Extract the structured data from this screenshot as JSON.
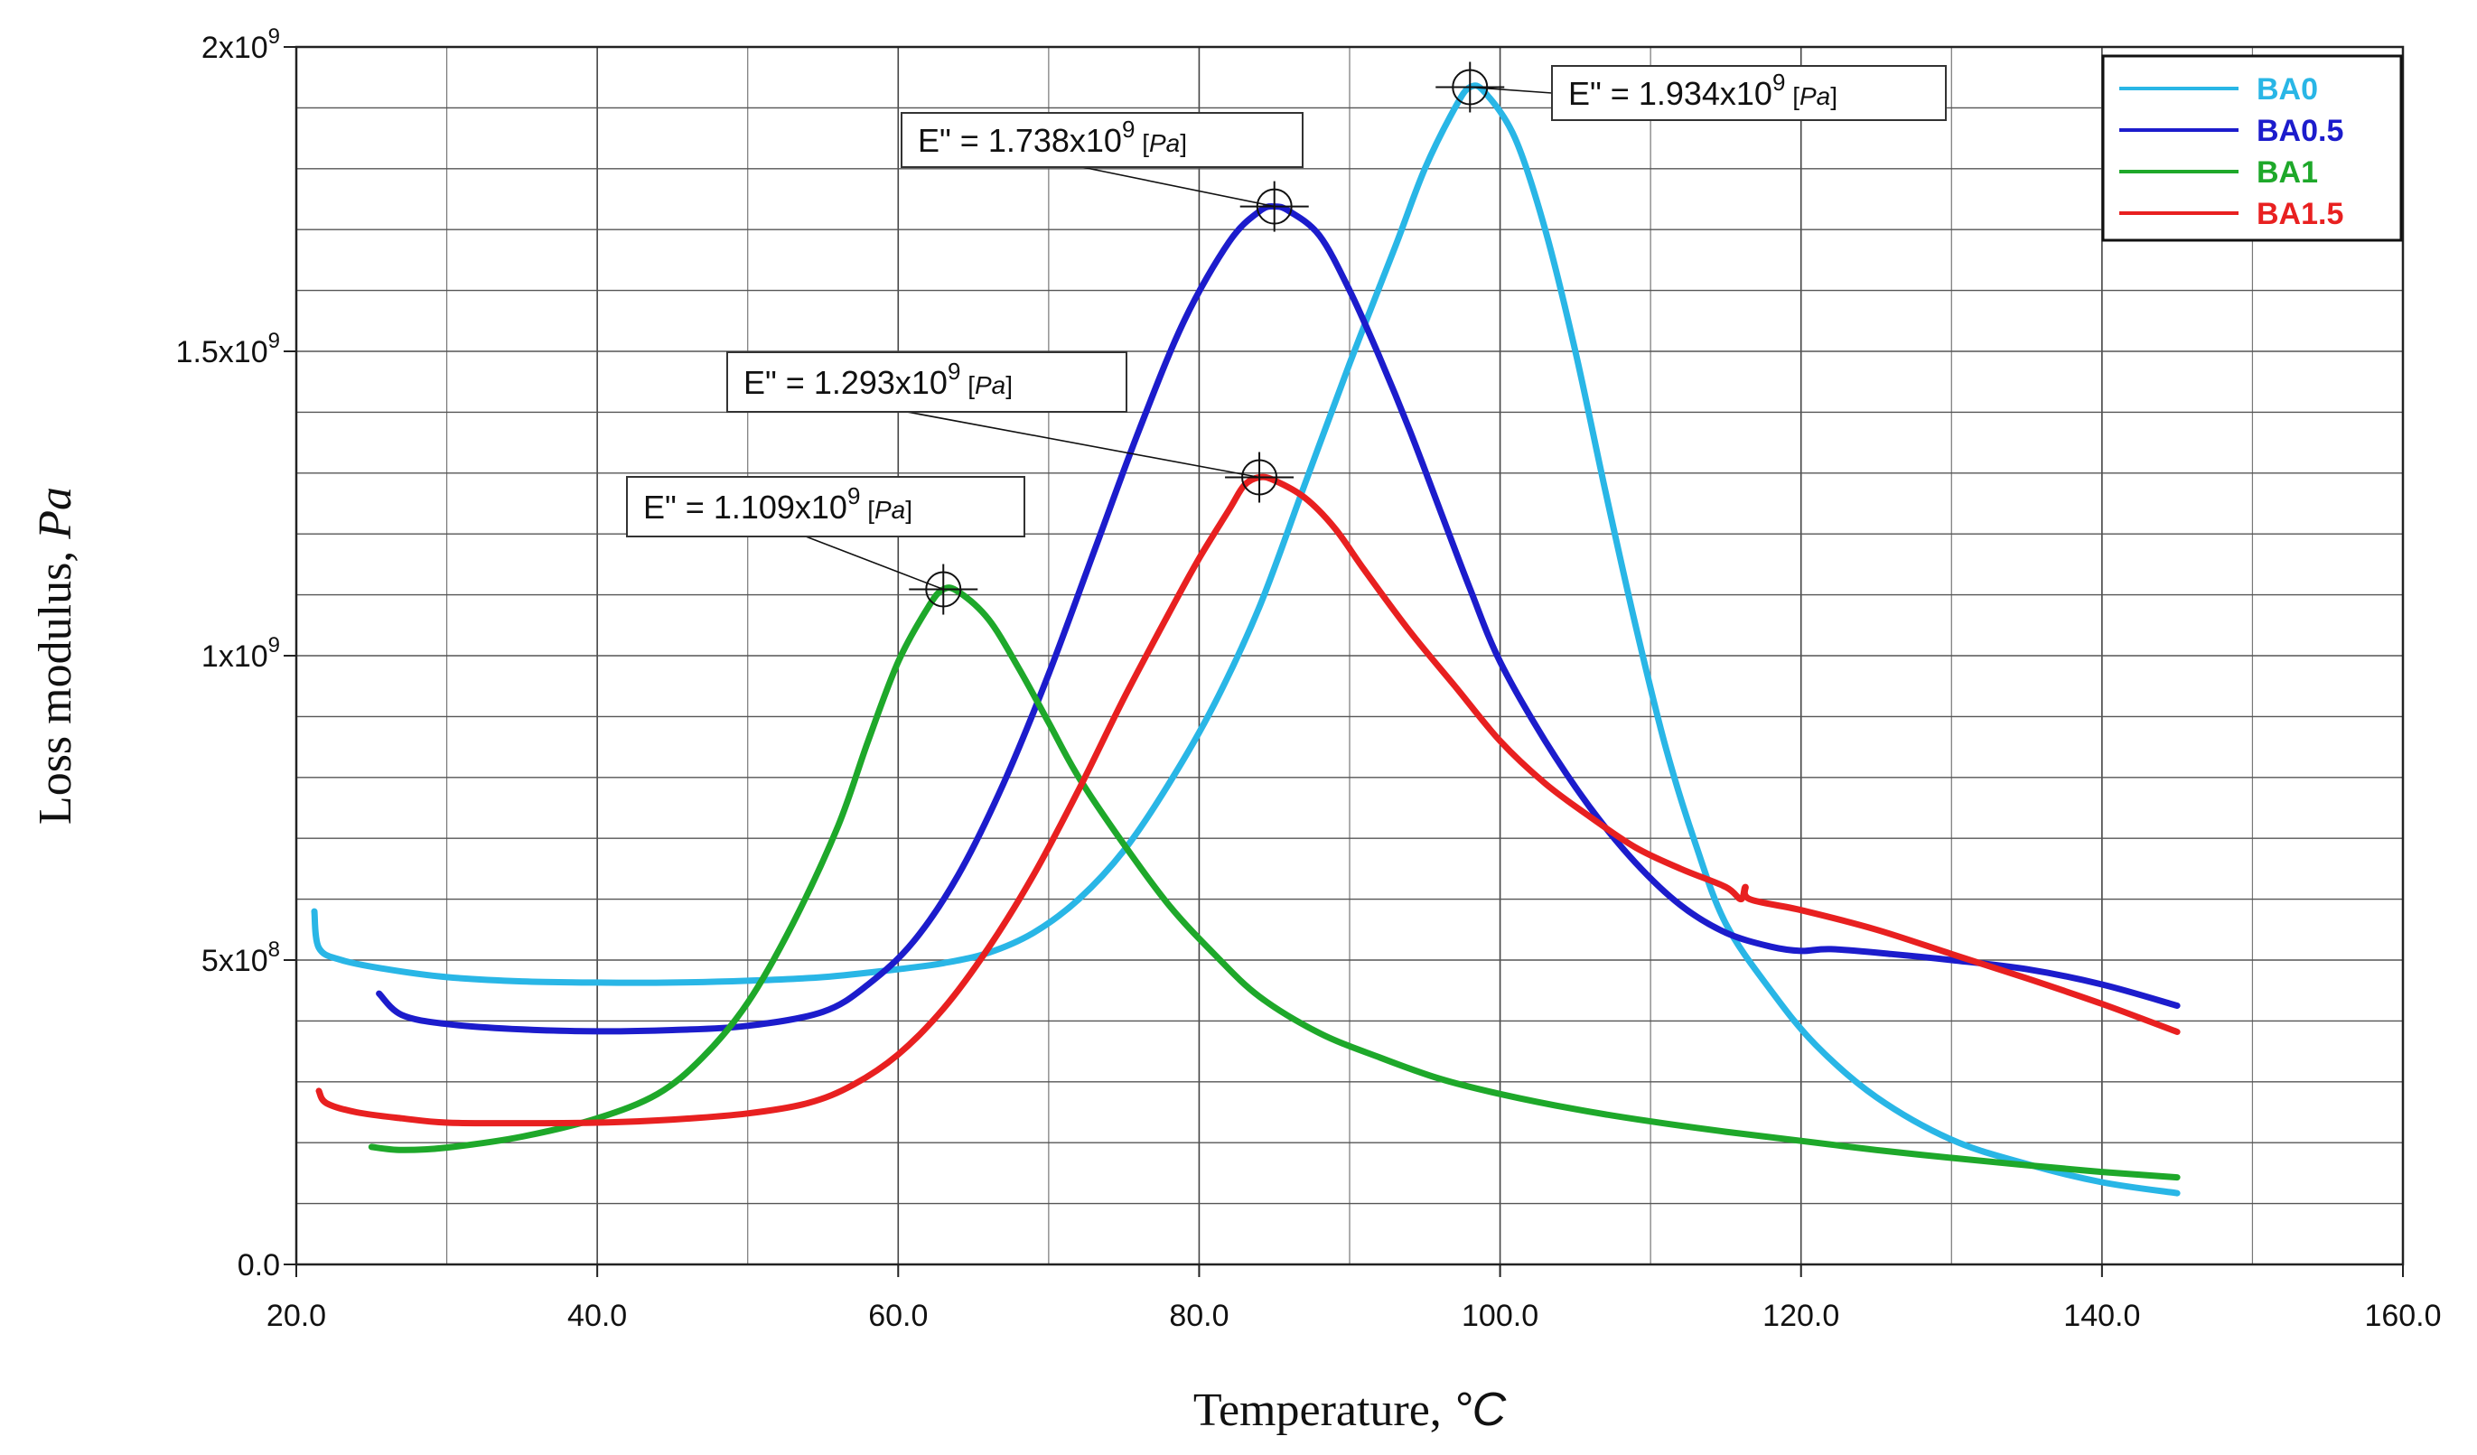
{
  "chart_data": {
    "type": "line",
    "title": "",
    "xlabel": "Temperature, ",
    "xlabel_unit": "°C",
    "ylabel": "Loss modulus, ",
    "ylabel_unit": "Pa",
    "xlim": [
      20,
      160
    ],
    "ylim": [
      0,
      2000000000
    ],
    "x_ticks": [
      20,
      40,
      60,
      80,
      100,
      120,
      140,
      160
    ],
    "x_tick_labels": [
      "20.0",
      "40.0",
      "60.0",
      "80.0",
      "100.0",
      "120.0",
      "140.0",
      "160.0"
    ],
    "y_ticks": [
      {
        "value": 0,
        "mantissa": "0.0",
        "exp": ""
      },
      {
        "value": 500000000,
        "mantissa": "5x10",
        "exp": "8"
      },
      {
        "value": 1000000000,
        "mantissa": "1x10",
        "exp": "9"
      },
      {
        "value": 1500000000,
        "mantissa": "1.5x10",
        "exp": "9"
      },
      {
        "value": 2000000000,
        "mantissa": "2x10",
        "exp": "9"
      }
    ],
    "grid": true,
    "x_minor_step": 10,
    "y_minor_step": 100000000,
    "legend_position": "top-right",
    "series": [
      {
        "name": "BA0",
        "color": "#29b6e6",
        "points": [
          [
            21.2,
            580000000
          ],
          [
            21.5,
            520000000
          ],
          [
            23,
            500000000
          ],
          [
            26,
            485000000
          ],
          [
            30,
            472000000
          ],
          [
            35,
            465000000
          ],
          [
            40,
            463000000
          ],
          [
            45,
            463000000
          ],
          [
            50,
            466000000
          ],
          [
            55,
            472000000
          ],
          [
            60,
            485000000
          ],
          [
            63,
            495000000
          ],
          [
            66,
            512000000
          ],
          [
            69,
            545000000
          ],
          [
            72,
            600000000
          ],
          [
            75,
            680000000
          ],
          [
            78,
            790000000
          ],
          [
            81,
            920000000
          ],
          [
            84,
            1080000000
          ],
          [
            87,
            1280000000
          ],
          [
            90,
            1480000000
          ],
          [
            93,
            1670000000
          ],
          [
            95,
            1800000000
          ],
          [
            97,
            1900000000
          ],
          [
            98,
            1934000000
          ],
          [
            99,
            1925000000
          ],
          [
            101,
            1850000000
          ],
          [
            103,
            1700000000
          ],
          [
            105,
            1500000000
          ],
          [
            107,
            1270000000
          ],
          [
            109,
            1050000000
          ],
          [
            111,
            850000000
          ],
          [
            113,
            690000000
          ],
          [
            115,
            560000000
          ],
          [
            118,
            450000000
          ],
          [
            121,
            360000000
          ],
          [
            125,
            275000000
          ],
          [
            130,
            205000000
          ],
          [
            135,
            165000000
          ],
          [
            140,
            135000000
          ],
          [
            145,
            117000000
          ]
        ]
      },
      {
        "name": "BA0.5",
        "color": "#1c1ccc",
        "points": [
          [
            25.5,
            445000000
          ],
          [
            27,
            410000000
          ],
          [
            30,
            395000000
          ],
          [
            35,
            386000000
          ],
          [
            40,
            383000000
          ],
          [
            45,
            385000000
          ],
          [
            50,
            392000000
          ],
          [
            55,
            415000000
          ],
          [
            58,
            460000000
          ],
          [
            61,
            530000000
          ],
          [
            64,
            640000000
          ],
          [
            67,
            790000000
          ],
          [
            70,
            970000000
          ],
          [
            73,
            1170000000
          ],
          [
            76,
            1370000000
          ],
          [
            79,
            1550000000
          ],
          [
            82,
            1680000000
          ],
          [
            84,
            1730000000
          ],
          [
            85,
            1738000000
          ],
          [
            86,
            1730000000
          ],
          [
            88,
            1690000000
          ],
          [
            90,
            1600000000
          ],
          [
            92,
            1490000000
          ],
          [
            94,
            1370000000
          ],
          [
            96,
            1240000000
          ],
          [
            98,
            1110000000
          ],
          [
            100,
            990000000
          ],
          [
            103,
            860000000
          ],
          [
            106,
            750000000
          ],
          [
            109,
            660000000
          ],
          [
            112,
            590000000
          ],
          [
            115,
            545000000
          ],
          [
            118,
            522000000
          ],
          [
            120,
            515000000
          ],
          [
            122,
            518000000
          ],
          [
            126,
            510000000
          ],
          [
            130,
            500000000
          ],
          [
            135,
            485000000
          ],
          [
            140,
            460000000
          ],
          [
            145,
            425000000
          ]
        ]
      },
      {
        "name": "BA1",
        "color": "#1ea82a",
        "points": [
          [
            25,
            193000000
          ],
          [
            27,
            188000000
          ],
          [
            30,
            192000000
          ],
          [
            35,
            210000000
          ],
          [
            40,
            240000000
          ],
          [
            44,
            280000000
          ],
          [
            47,
            340000000
          ],
          [
            50,
            430000000
          ],
          [
            53,
            560000000
          ],
          [
            56,
            720000000
          ],
          [
            58,
            860000000
          ],
          [
            60,
            990000000
          ],
          [
            62,
            1080000000
          ],
          [
            63,
            1109000000
          ],
          [
            64,
            1105000000
          ],
          [
            66,
            1060000000
          ],
          [
            68,
            980000000
          ],
          [
            70,
            890000000
          ],
          [
            72,
            800000000
          ],
          [
            75,
            690000000
          ],
          [
            78,
            590000000
          ],
          [
            81,
            510000000
          ],
          [
            84,
            440000000
          ],
          [
            88,
            380000000
          ],
          [
            92,
            340000000
          ],
          [
            96,
            305000000
          ],
          [
            100,
            280000000
          ],
          [
            105,
            255000000
          ],
          [
            110,
            235000000
          ],
          [
            115,
            218000000
          ],
          [
            120,
            203000000
          ],
          [
            125,
            188000000
          ],
          [
            130,
            175000000
          ],
          [
            135,
            163000000
          ],
          [
            140,
            152000000
          ],
          [
            145,
            143000000
          ]
        ]
      },
      {
        "name": "BA1.5",
        "color": "#e82020",
        "points": [
          [
            21.5,
            285000000
          ],
          [
            22,
            265000000
          ],
          [
            24,
            250000000
          ],
          [
            27,
            240000000
          ],
          [
            30,
            233000000
          ],
          [
            35,
            232000000
          ],
          [
            40,
            233000000
          ],
          [
            45,
            238000000
          ],
          [
            50,
            248000000
          ],
          [
            54,
            265000000
          ],
          [
            57,
            295000000
          ],
          [
            60,
            345000000
          ],
          [
            63,
            420000000
          ],
          [
            66,
            520000000
          ],
          [
            69,
            640000000
          ],
          [
            72,
            780000000
          ],
          [
            75,
            930000000
          ],
          [
            78,
            1070000000
          ],
          [
            80,
            1160000000
          ],
          [
            82,
            1240000000
          ],
          [
            83,
            1280000000
          ],
          [
            84,
            1293000000
          ],
          [
            85,
            1288000000
          ],
          [
            87,
            1260000000
          ],
          [
            89,
            1210000000
          ],
          [
            91,
            1140000000
          ],
          [
            94,
            1040000000
          ],
          [
            97,
            950000000
          ],
          [
            100,
            860000000
          ],
          [
            103,
            790000000
          ],
          [
            106,
            735000000
          ],
          [
            109,
            685000000
          ],
          [
            112,
            650000000
          ],
          [
            115,
            620000000
          ],
          [
            116,
            600000000
          ],
          [
            116.3,
            620000000
          ],
          [
            116.6,
            600000000
          ],
          [
            120,
            582000000
          ],
          [
            125,
            550000000
          ],
          [
            130,
            510000000
          ],
          [
            135,
            470000000
          ],
          [
            140,
            428000000
          ],
          [
            145,
            382000000
          ]
        ]
      }
    ],
    "annotations": [
      {
        "series": "BA0",
        "x": 98,
        "y": 1934000000,
        "prefix": "E\" = 1.934x10",
        "exp": "9",
        "unit": "Pa"
      },
      {
        "series": "BA0.5",
        "x": 85,
        "y": 1738000000,
        "prefix": "E\" = 1.738x10",
        "exp": "9",
        "unit": "Pa"
      },
      {
        "series": "BA1.5",
        "x": 84,
        "y": 1293000000,
        "prefix": "E\" = 1.293x10",
        "exp": "9",
        "unit": "Pa"
      },
      {
        "series": "BA1",
        "x": 63,
        "y": 1109000000,
        "prefix": "E\" = 1.109x10",
        "exp": "9",
        "unit": "Pa"
      }
    ]
  }
}
